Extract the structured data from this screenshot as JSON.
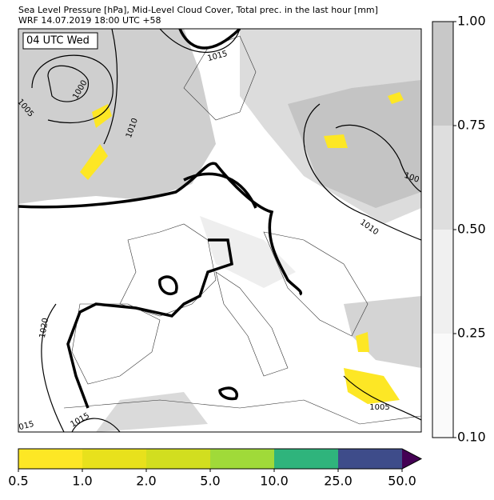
{
  "header": {
    "line1": "Sea Level Pressure [hPa], Mid-Level Cloud Cover, Total prec. in the last hour [mm]",
    "line2": "WRF 14.07.2019 18:00 UTC +58"
  },
  "time_label": "04 UTC Wed",
  "contour_labels": [
    "1015",
    "1000",
    "1005",
    "1010",
    "1010",
    "100",
    "1020",
    "015",
    "1015",
    "1005"
  ],
  "cloud_colorbar": {
    "ticks": [
      {
        "value": 0.1,
        "label": "0.10"
      },
      {
        "value": 0.25,
        "label": "0.25"
      },
      {
        "value": 0.5,
        "label": "0.50"
      },
      {
        "value": 0.75,
        "label": "0.75"
      },
      {
        "value": 1,
        "label": "1.00"
      }
    ],
    "colors": [
      "#fafafa",
      "#f0f0f0",
      "#dedede",
      "#c8c8c8"
    ]
  },
  "precip_colorbar": {
    "ticks": [
      {
        "value": 0.5,
        "label": "0.5"
      },
      {
        "value": 1,
        "label": "1.0"
      },
      {
        "value": 2,
        "label": "2.0"
      },
      {
        "value": 5,
        "label": "5.0"
      },
      {
        "value": 10,
        "label": "10.0"
      },
      {
        "value": 25,
        "label": "25.0"
      },
      {
        "value": 50,
        "label": "50.0"
      }
    ],
    "colors": [
      "#fde725",
      "#e8e11c",
      "#d2de1f",
      "#a0da39",
      "#2fb47c",
      "#3e4c8a"
    ],
    "over_color": "#440154"
  }
}
